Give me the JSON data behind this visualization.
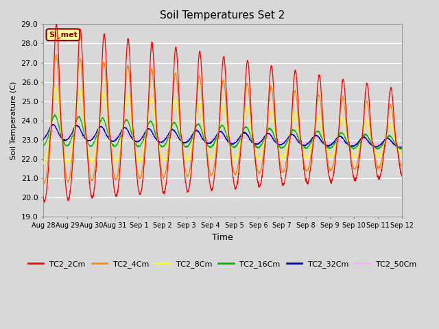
{
  "title": "Soil Temperatures Set 2",
  "xlabel": "Time",
  "ylabel": "Soil Temperature (C)",
  "ylim": [
    19.0,
    29.0
  ],
  "yticks": [
    19.0,
    20.0,
    21.0,
    22.0,
    23.0,
    24.0,
    25.0,
    26.0,
    27.0,
    28.0,
    29.0
  ],
  "background_color": "#d8d8d8",
  "plot_bg": "#d8d8d8",
  "grid_color": "#ffffff",
  "series_colors": {
    "TC2_2Cm": "#ff0000",
    "TC2_4Cm": "#ff8800",
    "TC2_8Cm": "#ffff00",
    "TC2_16Cm": "#00bb00",
    "TC2_32Cm": "#0000cc",
    "TC2_50Cm": "#ffaaff"
  },
  "annotation_text": "SI_met",
  "annotation_box_color": "#ffff99",
  "annotation_border_color": "#880000",
  "date_labels": [
    "Aug 28",
    "Aug 29",
    "Aug 30",
    "Aug 31",
    "Sep 1",
    "Sep 2",
    "Sep 3",
    "Sep 4",
    "Sep 5",
    "Sep 6",
    "Sep 7",
    "Sep 8",
    "Sep 9",
    "Sep 10",
    "Sep 11",
    "Sep 12"
  ],
  "figsize": [
    6.4,
    4.8
  ],
  "dpi": 100
}
